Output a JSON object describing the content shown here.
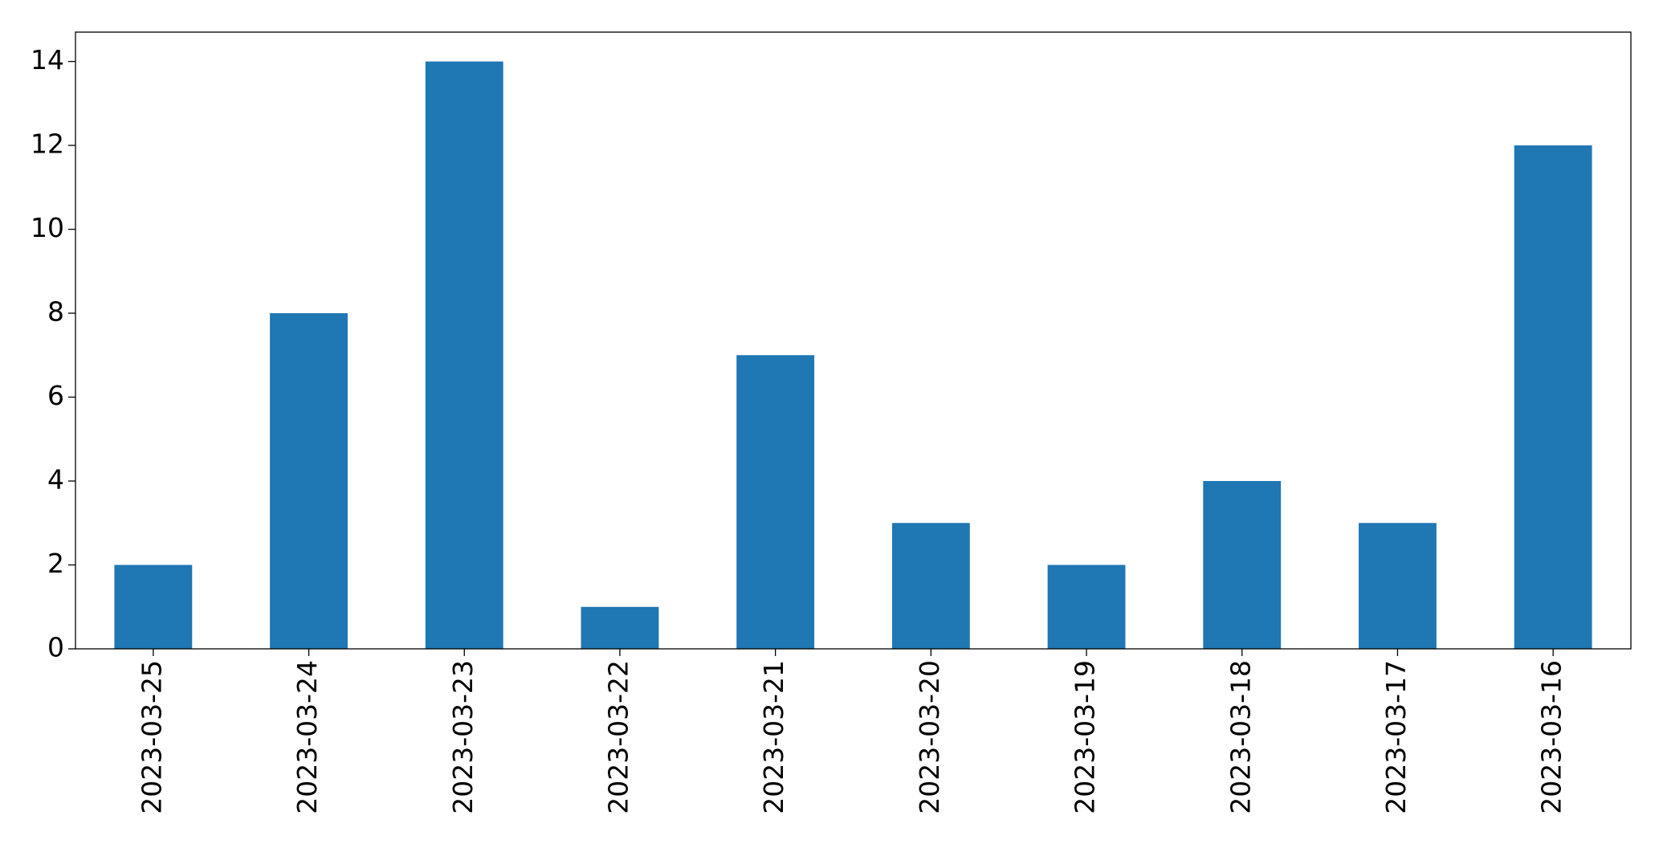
{
  "chart_data": {
    "type": "bar",
    "categories": [
      "2023-03-25",
      "2023-03-24",
      "2023-03-23",
      "2023-03-22",
      "2023-03-21",
      "2023-03-20",
      "2023-03-19",
      "2023-03-18",
      "2023-03-17",
      "2023-03-16"
    ],
    "values": [
      2,
      8,
      14,
      1,
      7,
      3,
      2,
      4,
      3,
      12
    ],
    "color": "#1f77b4",
    "ylim": [
      0,
      14.7
    ],
    "yticks": [
      0,
      2,
      4,
      6,
      8,
      10,
      12,
      14
    ],
    "grid": false
  }
}
